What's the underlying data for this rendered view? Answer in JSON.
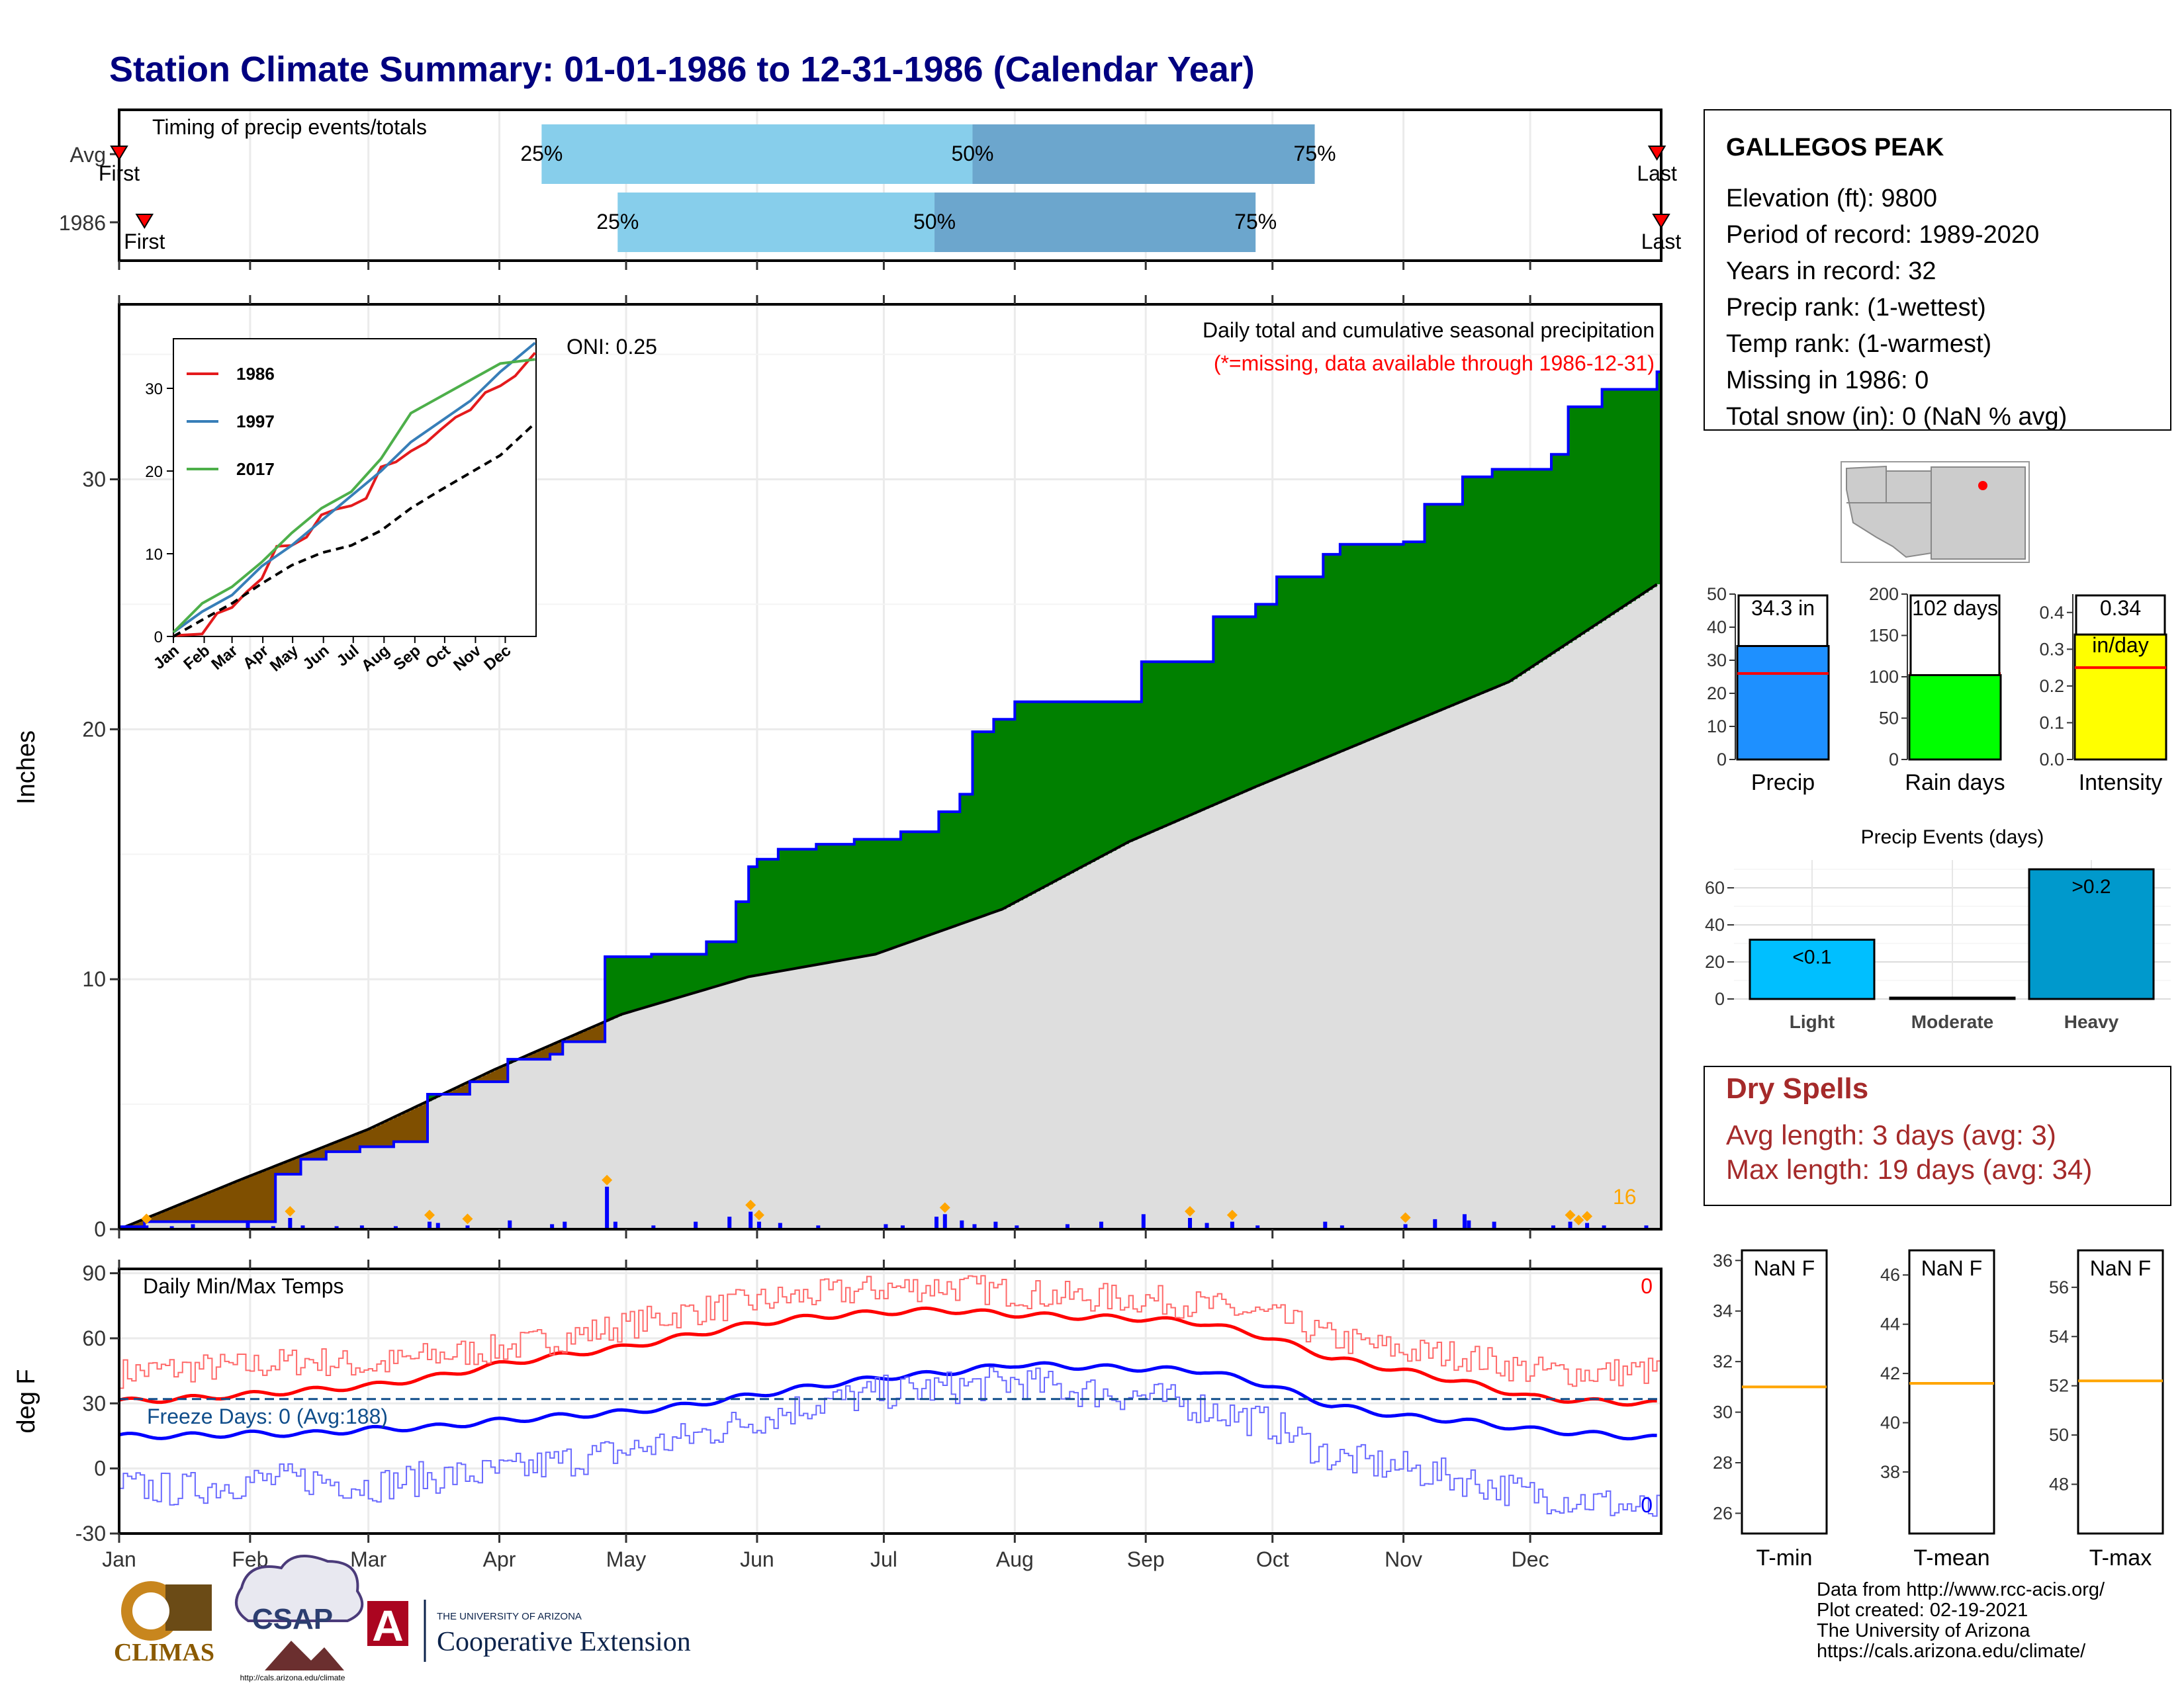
{
  "title": "Station Climate Summary: 01-01-1986 to 12-31-1986 (Calendar Year)",
  "timing": {
    "label": "Timing of precip events/totals",
    "rows": [
      {
        "name": "Avg",
        "first": "First",
        "last": "Last",
        "p25": "25%",
        "p50": "50%",
        "p75": "75%",
        "first_doy": 1,
        "last_doy": 365,
        "p25_doy": 101,
        "p50_doy": 203,
        "p75_doy": 284
      },
      {
        "name": "1986",
        "first": "First",
        "last": "Last",
        "p25": "25%",
        "p50": "50%",
        "p75": "75%",
        "first_doy": 7,
        "last_doy": 366,
        "p25_doy": 119,
        "p50_doy": 194,
        "p75_doy": 270
      }
    ]
  },
  "precip_panel": {
    "ylabel": "Inches",
    "oni": "ONI: 0.25",
    "header": "Daily total and cumulative seasonal precipitation",
    "note": "(*=missing, data available through 1986-12-31)",
    "count_label": "16",
    "ylim": [
      0,
      37
    ],
    "yticks": [
      "0",
      "10",
      "20",
      "30"
    ],
    "months": [
      "Jan",
      "Feb",
      "Mar",
      "Apr",
      "May",
      "Jun",
      "Jul",
      "Aug",
      "Sep",
      "Oct",
      "Nov",
      "Dec"
    ],
    "colors": {
      "above": "#008000",
      "below": "#7f4f00",
      "normal_fill": "#dedede",
      "observed": "#0000ff",
      "marker": "#ffa500"
    }
  },
  "inset": {
    "legend": [
      "1986",
      "1997",
      "2017"
    ],
    "colors": [
      "#e41a1c",
      "#377eb8",
      "#4daf4a"
    ],
    "yticks": [
      "0",
      "10",
      "20",
      "30"
    ],
    "months": [
      "Jan",
      "Feb",
      "Mar",
      "Apr",
      "May",
      "Jun",
      "Jul",
      "Aug",
      "Sep",
      "Oct",
      "Nov",
      "Dec"
    ]
  },
  "temp_panel": {
    "ylabel": "deg F",
    "label": "Daily Min/Max Temps",
    "freeze": "Freeze Days: 0 (Avg:188)",
    "max_count": "0",
    "min_count": "0",
    "yticks": [
      "-30",
      "0",
      "30",
      "60",
      "90"
    ],
    "ylim": [
      -30,
      92
    ],
    "freeze_line": 32,
    "months": [
      "Jan",
      "Feb",
      "Mar",
      "Apr",
      "May",
      "Jun",
      "Jul",
      "Aug",
      "Sep",
      "Oct",
      "Nov",
      "Dec"
    ]
  },
  "station": {
    "name": "GALLEGOS PEAK",
    "lines": [
      "Elevation (ft): 9800",
      "Period of record: 1989-2020",
      "Years in record: 32",
      "Precip rank:  (1-wettest)",
      "Temp rank:  (1-warmest)",
      "Missing in 1986: 0",
      "Total snow (in): 0 (NaN % avg)"
    ]
  },
  "summary_bars": [
    {
      "name": "Precip",
      "value_label": "34.3 in",
      "value": 34.3,
      "avg": 26,
      "ymax": 50,
      "ticks": [
        "0",
        "10",
        "20",
        "30",
        "40",
        "50"
      ],
      "color": "#1e90ff"
    },
    {
      "name": "Rain days",
      "value_label": "102 days",
      "value": 102,
      "avg": 104,
      "ymax": 200,
      "ticks": [
        "0",
        "50",
        "100",
        "150",
        "200"
      ],
      "color": "#00ff00"
    },
    {
      "name": "Intensity",
      "value_label": "0.34",
      "value_label2": "in/day",
      "value": 0.34,
      "avg": 0.25,
      "ymax": 0.45,
      "ticks": [
        "0.0",
        "0.1",
        "0.2",
        "0.3",
        "0.4"
      ],
      "color": "#ffff00"
    }
  ],
  "events": {
    "title": "Precip Events (days)",
    "categories": [
      "Light",
      "Moderate",
      "Heavy"
    ],
    "values": [
      32,
      0,
      70
    ],
    "labels": [
      "<0.1",
      "",
      ">0.2"
    ],
    "yticks": [
      "0",
      "20",
      "40",
      "60"
    ],
    "colors": [
      "#00bfff",
      "#000000",
      "#0099cc"
    ]
  },
  "dry_spells": {
    "title": "Dry Spells",
    "avg_line": "Avg length: 3 days (avg: 3)",
    "max_line": "Max length: 19 days (avg: 34)",
    "color": "#a52a2a"
  },
  "temp_boxes": [
    {
      "name": "T-min",
      "value_label": "NaN F",
      "ticks": [
        "26",
        "28",
        "30",
        "32",
        "34",
        "36"
      ],
      "lo": 25.2,
      "hi": 36.4,
      "line": 31.0
    },
    {
      "name": "T-mean",
      "value_label": "NaN F",
      "ticks": [
        "38",
        "40",
        "42",
        "44",
        "46"
      ],
      "lo": 35.5,
      "hi": 47.0,
      "line": 41.6
    },
    {
      "name": "T-max",
      "value_label": "NaN F",
      "ticks": [
        "48",
        "50",
        "52",
        "54",
        "56"
      ],
      "lo": 46.0,
      "hi": 57.5,
      "line": 52.2
    }
  ],
  "footer": [
    "Data from http://www.rcc-acis.org/",
    "Plot created: 02-19-2021",
    "The University of Arizona",
    "https://cals.arizona.edu/climate/"
  ],
  "logos": {
    "climas": "CLIMAS",
    "csap": "CSAP",
    "csap_url": "http://cals.arizona.edu/climate",
    "ua_small": "THE UNIVERSITY OF ARIZONA",
    "ua_big": "Cooperative Extension",
    "ua_letter": "A"
  },
  "chart_data": [
    {
      "type": "area",
      "title": "Daily total and cumulative seasonal precipitation",
      "ylabel": "Inches",
      "x_unit": "day of year 1986",
      "ylim": [
        0,
        37
      ],
      "series": [
        {
          "name": "observed cumulative",
          "x": [
            1,
            7,
            18,
            31,
            38,
            44,
            50,
            58,
            66,
            74,
            84,
            93,
            103,
            106,
            116,
            124,
            127,
            130,
            140,
            147,
            150,
            152,
            157,
            166,
            175,
            186,
            195,
            200,
            203,
            208,
            213,
            243,
            260,
            270,
            275,
            286,
            290,
            305,
            310,
            319,
            326,
            340,
            344,
            352,
            365
          ],
          "y": [
            0.1,
            0.3,
            0.3,
            0.3,
            2.2,
            2.8,
            3.1,
            3.3,
            3.5,
            5.4,
            5.9,
            6.8,
            7.0,
            7.5,
            10.9,
            10.9,
            11.0,
            11.0,
            11.5,
            13.1,
            14.5,
            14.8,
            15.2,
            15.4,
            15.6,
            15.9,
            16.7,
            17.4,
            19.9,
            20.4,
            21.1,
            22.7,
            24.5,
            25.0,
            26.1,
            27.0,
            27.4,
            27.5,
            29.0,
            30.1,
            30.4,
            31.0,
            32.9,
            33.6,
            34.3
          ]
        },
        {
          "name": "average cumulative",
          "x": [
            1,
            30,
            60,
            90,
            120,
            150,
            180,
            210,
            240,
            270,
            300,
            330,
            365
          ],
          "y": [
            0.0,
            2.0,
            4.0,
            6.4,
            8.6,
            10.1,
            11.0,
            12.8,
            15.5,
            17.7,
            19.8,
            21.9,
            25.8
          ]
        }
      ]
    },
    {
      "type": "bar",
      "title": "Daily precipitation",
      "x_unit": "day of year 1986",
      "x": [
        7,
        13,
        18,
        31,
        37,
        41,
        44,
        52,
        58,
        66,
        74,
        76,
        83,
        93,
        103,
        106,
        116,
        118,
        127,
        137,
        145,
        150,
        152,
        157,
        166,
        182,
        186,
        194,
        196,
        200,
        203,
        208,
        213,
        225,
        233,
        243,
        254,
        258,
        264,
        270,
        286,
        290,
        305,
        312,
        319,
        320,
        326,
        340,
        344,
        348,
        352,
        362
      ],
      "y": [
        0.15,
        0.12,
        0.2,
        0.25,
        0.12,
        0.45,
        0.15,
        0.12,
        0.15,
        0.12,
        0.3,
        0.25,
        0.15,
        0.35,
        0.2,
        0.3,
        1.7,
        0.3,
        0.15,
        0.3,
        0.5,
        0.7,
        0.3,
        0.25,
        0.15,
        0.2,
        0.15,
        0.5,
        0.6,
        0.35,
        0.2,
        0.3,
        0.15,
        0.2,
        0.3,
        0.6,
        0.45,
        0.25,
        0.3,
        0.15,
        0.3,
        0.15,
        0.2,
        0.4,
        0.6,
        0.35,
        0.3,
        0.15,
        0.3,
        0.25,
        0.15,
        0.15
      ],
      "heavy_markers_x": [
        7,
        41,
        74,
        83,
        116,
        150,
        152,
        196,
        254,
        264,
        305,
        344,
        346,
        348
      ]
    },
    {
      "type": "line",
      "title": "Inset cumulative precipitation",
      "x_unit": "day of year",
      "ylim": [
        0,
        36
      ],
      "series": [
        {
          "name": "1986",
          "x": [
            1,
            30,
            45,
            60,
            75,
            90,
            105,
            120,
            135,
            150,
            165,
            180,
            195,
            210,
            225,
            240,
            255,
            270,
            285,
            300,
            315,
            330,
            345,
            365
          ],
          "y": [
            0.1,
            0.3,
            2.8,
            3.5,
            5.4,
            7.0,
            10.9,
            11.0,
            12.0,
            14.7,
            15.4,
            15.8,
            16.7,
            20.5,
            21.1,
            22.4,
            23.4,
            25.0,
            26.5,
            27.4,
            29.5,
            30.3,
            31.5,
            34.3
          ]
        },
        {
          "name": "1997",
          "x": [
            1,
            30,
            60,
            90,
            120,
            150,
            180,
            210,
            240,
            270,
            300,
            330,
            365
          ],
          "y": [
            0.5,
            3.0,
            5.0,
            8.5,
            11.0,
            14.0,
            17.0,
            20.0,
            23.5,
            26.0,
            28.5,
            32.0,
            35.5
          ]
        },
        {
          "name": "2017",
          "x": [
            1,
            30,
            60,
            90,
            120,
            150,
            180,
            210,
            240,
            270,
            300,
            330,
            365
          ],
          "y": [
            0.5,
            4.0,
            6.0,
            9.0,
            12.5,
            15.5,
            17.5,
            21.5,
            27.0,
            29.0,
            31.0,
            33.0,
            33.5
          ]
        },
        {
          "name": "average",
          "x": [
            1,
            30,
            60,
            90,
            120,
            150,
            180,
            210,
            240,
            270,
            300,
            330,
            365
          ],
          "y": [
            0.0,
            2.0,
            4.0,
            6.4,
            8.6,
            10.1,
            11.0,
            12.8,
            15.5,
            17.7,
            19.8,
            21.9,
            25.8
          ]
        }
      ]
    },
    {
      "type": "line",
      "title": "Daily Min/Max Temps",
      "ylabel": "deg F",
      "x_unit": "day of year 1986",
      "ylim": [
        -30,
        92
      ],
      "x": [
        1,
        15,
        31,
        46,
        60,
        75,
        91,
        105,
        121,
        135,
        152,
        166,
        182,
        196,
        213,
        227,
        244,
        258,
        274,
        288,
        305,
        319,
        335,
        349,
        365
      ],
      "series": [
        {
          "name": "avg max",
          "values": [
            31,
            32,
            34,
            36,
            38,
            42,
            48,
            52,
            56,
            61,
            67,
            70,
            72,
            73,
            71,
            70,
            69,
            67,
            60,
            51,
            45,
            40,
            33,
            31,
            30
          ]
        },
        {
          "name": "avg min",
          "values": [
            15,
            15,
            16,
            16,
            18,
            19,
            22,
            24,
            26,
            29,
            34,
            38,
            42,
            44,
            48,
            47,
            46,
            45,
            38,
            29,
            24,
            22,
            18,
            16,
            14
          ]
        },
        {
          "name": "daily max",
          "values": [
            44,
            46,
            47,
            50,
            47,
            52,
            55,
            60,
            66,
            72,
            77,
            80,
            83,
            84,
            81,
            79,
            78,
            75,
            70,
            60,
            54,
            52,
            45,
            44,
            45
          ]
        },
        {
          "name": "daily min",
          "values": [
            -8,
            -10,
            -6,
            -5,
            -8,
            -4,
            -2,
            3,
            8,
            14,
            23,
            30,
            35,
            37,
            40,
            36,
            33,
            28,
            20,
            5,
            0,
            -5,
            -12,
            -15,
            -20
          ]
        }
      ]
    },
    {
      "type": "bar",
      "title": "Precip Events (days)",
      "categories": [
        "Light",
        "Moderate",
        "Heavy"
      ],
      "values": [
        32,
        0,
        70
      ]
    }
  ]
}
